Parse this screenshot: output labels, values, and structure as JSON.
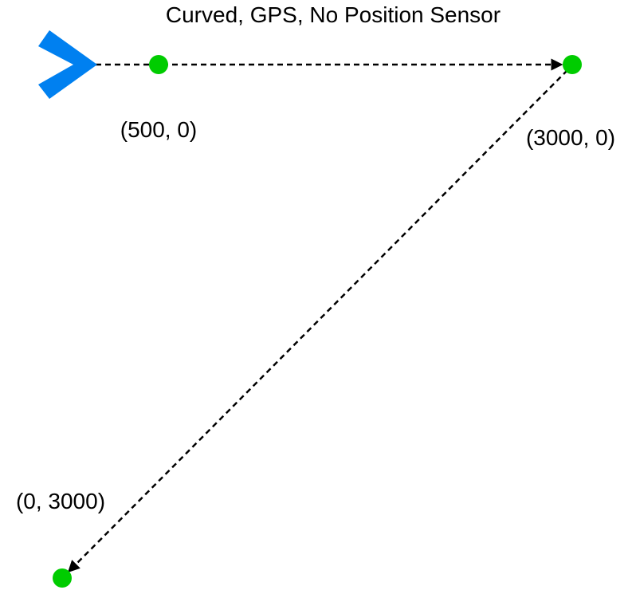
{
  "title": "Curved, GPS, No Position Sensor",
  "colors": {
    "robot": "#0080f0",
    "waypoint": "#00cc00",
    "path": "#000000"
  },
  "robot": {
    "icon": "chevron-right-icon"
  },
  "waypoints": [
    {
      "label": "(500, 0)"
    },
    {
      "label": "(3000, 0)"
    },
    {
      "label": "(0, 3000)"
    }
  ]
}
